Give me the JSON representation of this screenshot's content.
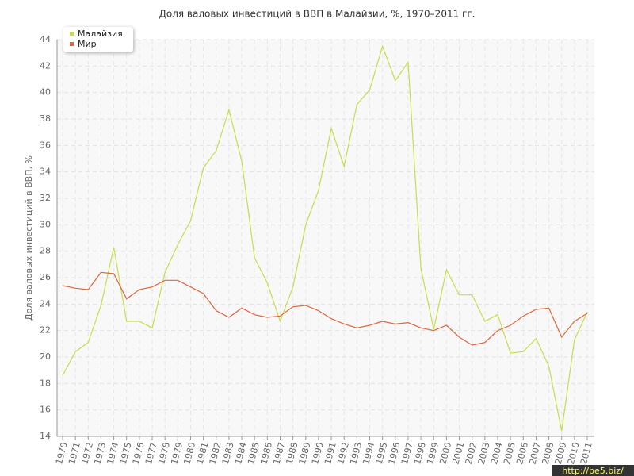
{
  "chart_data": {
    "type": "line",
    "title": "Доля валовых инвестиций в ВВП в Малайзии, %, 1970–2011 гг.",
    "y_label": "Доля валовых инвестиций в ВВП, %",
    "watermark": "http://be5.biz/",
    "categories": [
      "1970",
      "1971",
      "1972",
      "1973",
      "1974",
      "1975",
      "1976",
      "1977",
      "1978",
      "1979",
      "1980",
      "1981",
      "1982",
      "1983",
      "1984",
      "1985",
      "1986",
      "1987",
      "1988",
      "1989",
      "1990",
      "1991",
      "1992",
      "1993",
      "1994",
      "1995",
      "1996",
      "1997",
      "1998",
      "1999",
      "2000",
      "2001",
      "2002",
      "2003",
      "2004",
      "2005",
      "2006",
      "2007",
      "2008",
      "2009",
      "2010",
      "2011"
    ],
    "series": [
      {
        "name": "Малайзия",
        "color": "#c8dc4c",
        "values": [
          18.6,
          20.4,
          21.1,
          23.9,
          28.3,
          22.7,
          22.7,
          22.2,
          26.4,
          28.5,
          30.3,
          34.3,
          35.6,
          38.7,
          34.8,
          27.5,
          25.6,
          22.7,
          25.3,
          30.0,
          32.6,
          37.3,
          34.4,
          39.1,
          40.2,
          43.5,
          40.9,
          42.3,
          26.7,
          22.1,
          26.6,
          24.7,
          24.7,
          22.7,
          23.2,
          20.3,
          20.4,
          21.4,
          19.3,
          14.4,
          21.3,
          23.4
        ]
      },
      {
        "name": "Мир",
        "color": "#e0663c",
        "values": [
          25.4,
          25.2,
          25.1,
          26.4,
          26.3,
          24.4,
          25.1,
          25.3,
          25.8,
          25.8,
          25.3,
          24.8,
          23.5,
          23.0,
          23.7,
          23.2,
          23.0,
          23.1,
          23.8,
          23.9,
          23.5,
          22.9,
          22.5,
          22.2,
          22.4,
          22.7,
          22.5,
          22.6,
          22.2,
          22.0,
          22.4,
          21.5,
          20.9,
          21.1,
          22.0,
          22.4,
          23.1,
          23.6,
          23.7,
          21.5,
          22.7,
          23.3
        ]
      }
    ],
    "ylim": [
      14,
      44
    ],
    "yticks": [
      14,
      16,
      18,
      20,
      22,
      24,
      26,
      28,
      30,
      32,
      34,
      36,
      38,
      40,
      42,
      44
    ],
    "grid": true,
    "legend": "top-left"
  }
}
